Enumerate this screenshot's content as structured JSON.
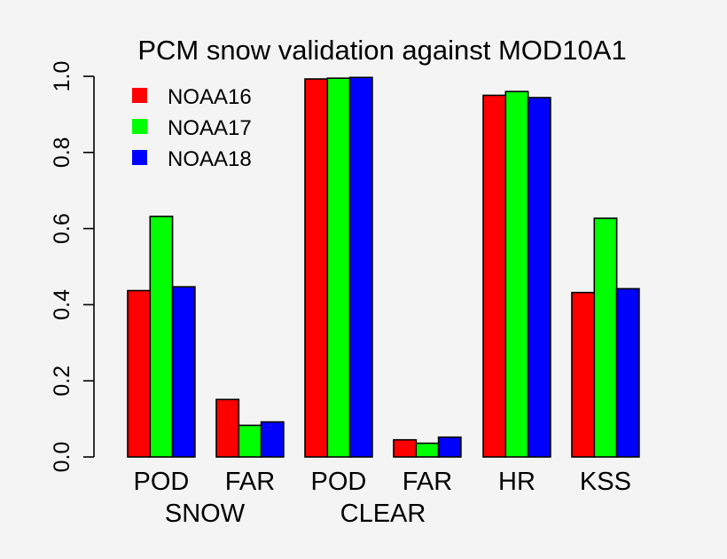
{
  "chart_data": {
    "type": "bar",
    "title": "PCM snow validation against MOD10A1",
    "categories": [
      "POD",
      "FAR",
      "POD",
      "FAR",
      "HR",
      "KSS"
    ],
    "groups": [
      {
        "label": "SNOW",
        "categories": [
          "POD",
          "FAR"
        ]
      },
      {
        "label": "CLEAR",
        "categories": [
          "POD",
          "FAR"
        ]
      }
    ],
    "series": [
      {
        "name": "NOAA16",
        "color": "#ff0000",
        "values": [
          0.437,
          0.151,
          0.993,
          0.045,
          0.95,
          0.432
        ]
      },
      {
        "name": "NOAA17",
        "color": "#00ff00",
        "values": [
          0.632,
          0.083,
          0.995,
          0.036,
          0.96,
          0.627
        ]
      },
      {
        "name": "NOAA18",
        "color": "#0000ff",
        "values": [
          0.447,
          0.092,
          0.997,
          0.052,
          0.944,
          0.442
        ]
      }
    ],
    "ylim": [
      0,
      1
    ],
    "yticks": [
      "0.0",
      "0.2",
      "0.4",
      "0.6",
      "0.8",
      "1.0"
    ],
    "legend_position": "top-left",
    "grid": false
  }
}
